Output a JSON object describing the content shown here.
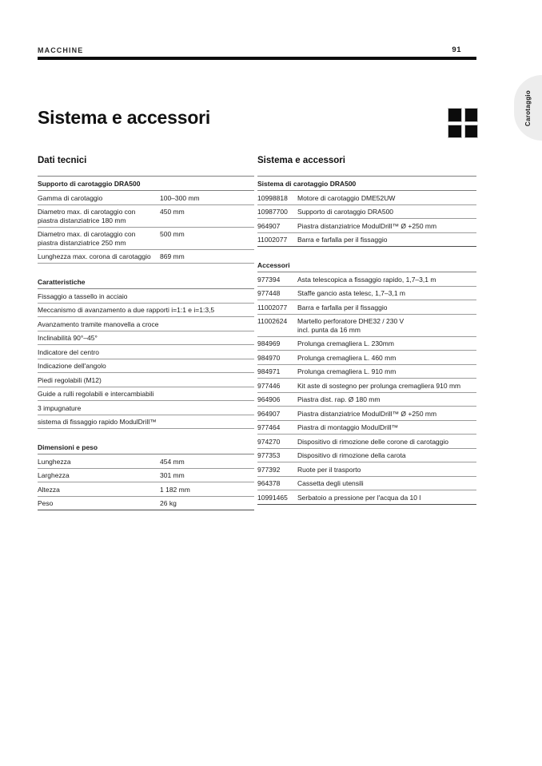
{
  "header": {
    "section": "MACCHINE",
    "page_number": "91"
  },
  "side_tab": {
    "label": "Carotaggio"
  },
  "title": "Sistema e accessori",
  "logo": {
    "name": "four-black-squares-logo"
  },
  "left_column": {
    "heading": "Dati tecnici",
    "tables": [
      {
        "subheader": "Supporto di carotaggio DRA500",
        "type": "kv",
        "rows": [
          {
            "label": "Gamma di carotaggio",
            "value": "100–300 mm"
          },
          {
            "label": "Diametro max. di carotaggio con piastra distanziatrice 180 mm",
            "value": "450 mm"
          },
          {
            "label": "Diametro max. di carotaggio con piastra distanziatrice 250 mm",
            "value": "500 mm"
          },
          {
            "label": "Lunghezza max. corona di carotaggio",
            "value": "869 mm"
          }
        ]
      },
      {
        "subheader": "Caratteristiche",
        "type": "list",
        "rows": [
          {
            "label": "Fissaggio a tassello in acciaio"
          },
          {
            "label": "Meccanismo di avanzamento a due rapporti i=1:1 e i=1:3,5"
          },
          {
            "label": "Avanzamento tramite manovella a croce"
          },
          {
            "label": "Inclinabilità 90°–45°"
          },
          {
            "label": "Indicatore del centro"
          },
          {
            "label": "Indicazione dell'angolo"
          },
          {
            "label": "Piedi regolabili (M12)"
          },
          {
            "label": "Guide a rulli regolabili e intercambiabili"
          },
          {
            "label": "3 impugnature"
          },
          {
            "label": "sistema di fissaggio rapido ModulDrill™"
          }
        ]
      },
      {
        "subheader": "Dimensioni e peso",
        "type": "kv",
        "rows": [
          {
            "label": "Lunghezza",
            "value": "454 mm"
          },
          {
            "label": "Larghezza",
            "value": "301 mm"
          },
          {
            "label": "Altezza",
            "value": "1 182 mm"
          },
          {
            "label": "Peso",
            "value": "26 kg"
          }
        ]
      }
    ]
  },
  "right_column": {
    "heading": "Sistema e accessori",
    "tables": [
      {
        "subheader": "Sistema di carotaggio DRA500",
        "type": "parts",
        "rows": [
          {
            "code": "10998818",
            "desc": "Motore di carotaggio DME52UW"
          },
          {
            "code": "10987700",
            "desc": "Supporto di carotaggio DRA500"
          },
          {
            "code": "964907",
            "desc": "Piastra distanziatrice ModulDrill™ Ø +250 mm"
          },
          {
            "code": "11002077",
            "desc": "Barra e farfalla per il fissaggio"
          }
        ]
      },
      {
        "subheader": "Accessori",
        "type": "parts",
        "rows": [
          {
            "code": "977394",
            "desc": "Asta telescopica a fissaggio rapido, 1,7–3,1 m"
          },
          {
            "code": "977448",
            "desc": "Staffe gancio asta telesc, 1,7–3,1 m"
          },
          {
            "code": "11002077",
            "desc": "Barra e farfalla per il fissaggio"
          },
          {
            "code": "11002624",
            "desc": "Martello perforatore DHE32 / 230 V",
            "desc2": "incl. punta da 16 mm"
          },
          {
            "code": "984969",
            "desc": "Prolunga cremagliera L. 230mm"
          },
          {
            "code": "984970",
            "desc": "Prolunga cremagliera L. 460 mm"
          },
          {
            "code": "984971",
            "desc": "Prolunga cremagliera L. 910 mm"
          },
          {
            "code": "977446",
            "desc": "Kit aste di sostegno per prolunga cremagliera 910 mm"
          },
          {
            "code": "964906",
            "desc": "Piastra dist. rap. Ø 180 mm"
          },
          {
            "code": "964907",
            "desc": "Piastra distanziatrice ModulDrill™ Ø +250 mm"
          },
          {
            "code": "977464",
            "desc": "Piastra di montaggio ModulDrill™"
          },
          {
            "code": "974270",
            "desc": "Dispositivo di rimozione delle corone di carotaggio"
          },
          {
            "code": "977353",
            "desc": "Dispositivo di rimozione della carota"
          },
          {
            "code": "977392",
            "desc": "Ruote per il trasporto"
          },
          {
            "code": "964378",
            "desc": "Cassetta degli utensili"
          },
          {
            "code": "10991465",
            "desc": "Serbatoio a pressione per l'acqua da 10 l"
          }
        ]
      }
    ]
  }
}
